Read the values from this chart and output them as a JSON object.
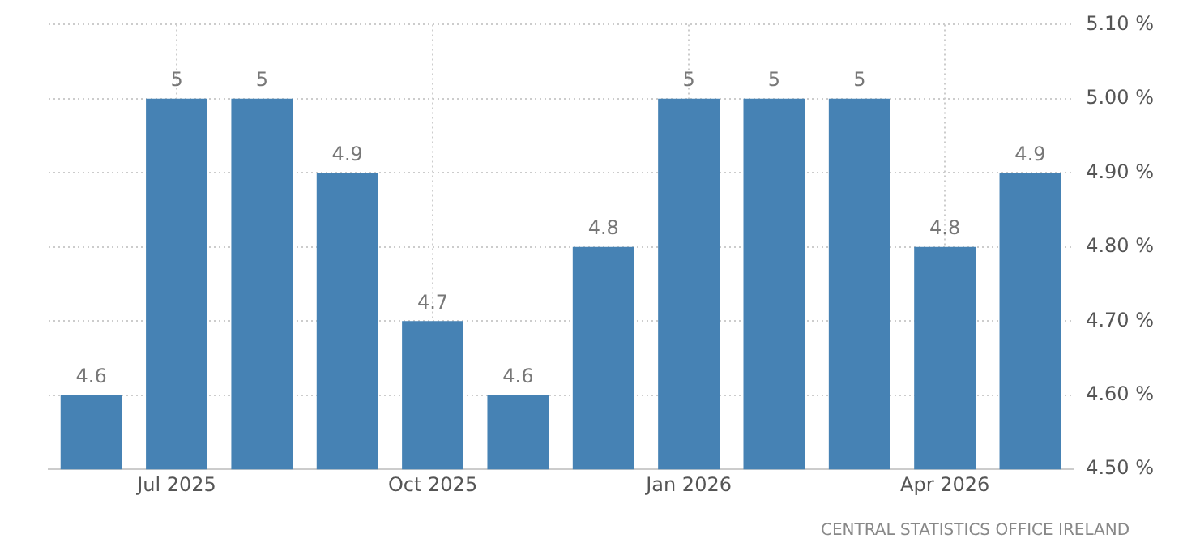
{
  "chart_data": {
    "type": "bar",
    "categories": [
      null,
      "Jul 2025",
      null,
      null,
      "Oct 2025",
      null,
      null,
      "Jan 2026",
      null,
      null,
      "Apr 2026",
      null
    ],
    "values": [
      4.6,
      5,
      5,
      4.9,
      4.7,
      4.6,
      4.8,
      5,
      5,
      5,
      4.8,
      4.9
    ],
    "color": "#4682b4",
    "ylim": [
      4.5,
      5.1
    ],
    "yticks": [
      {
        "value": 4.5,
        "label": "4.50 %"
      },
      {
        "value": 4.6,
        "label": "4.60 %"
      },
      {
        "value": 4.7,
        "label": "4.70 %"
      },
      {
        "value": 4.8,
        "label": "4.80 %"
      },
      {
        "value": 4.9,
        "label": "4.90 %"
      },
      {
        "value": 5,
        "label": "5.00 %"
      },
      {
        "value": 5.1,
        "label": "5.10 %"
      }
    ],
    "grid": true,
    "data_labels": true,
    "legend": false,
    "annotations": [
      "CENTRAL STATISTICS OFFICE IRELAND"
    ]
  }
}
